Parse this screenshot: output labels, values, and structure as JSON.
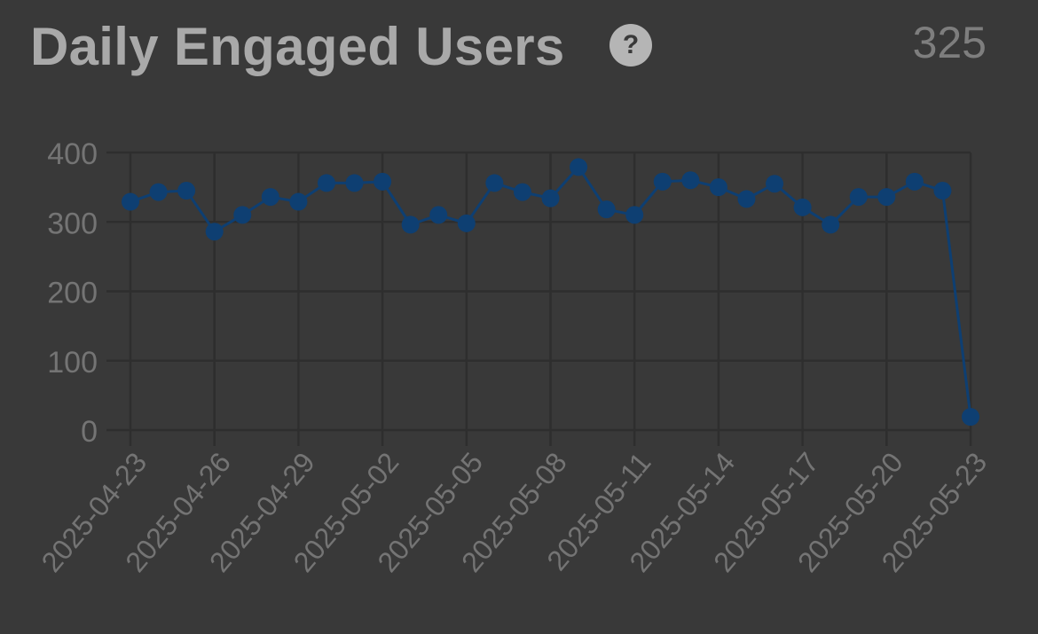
{
  "header": {
    "title": "Daily Engaged Users",
    "help_icon": "question-circle-icon",
    "value": "325"
  },
  "colors": {
    "background": "#393939",
    "series": "#0e3f72",
    "grid": "#2e2e2e",
    "text": "#a9a9a9",
    "tick_text": "#747474"
  },
  "chart_data": {
    "type": "line",
    "title": "",
    "xlabel": "",
    "ylabel": "",
    "ylim": [
      0,
      400
    ],
    "yticks": [
      0,
      100,
      200,
      300,
      400
    ],
    "grid": true,
    "x": [
      "2025-04-23",
      "2025-04-24",
      "2025-04-25",
      "2025-04-26",
      "2025-04-27",
      "2025-04-28",
      "2025-04-29",
      "2025-04-30",
      "2025-05-01",
      "2025-05-02",
      "2025-05-03",
      "2025-05-04",
      "2025-05-05",
      "2025-05-06",
      "2025-05-07",
      "2025-05-08",
      "2025-05-09",
      "2025-05-10",
      "2025-05-11",
      "2025-05-12",
      "2025-05-13",
      "2025-05-14",
      "2025-05-15",
      "2025-05-16",
      "2025-05-17",
      "2025-05-18",
      "2025-05-19",
      "2025-05-20",
      "2025-05-21",
      "2025-05-22",
      "2025-05-23"
    ],
    "xtick_labels": [
      "2025-04-23",
      "2025-04-26",
      "2025-04-29",
      "2025-05-02",
      "2025-05-05",
      "2025-05-08",
      "2025-05-11",
      "2025-05-14",
      "2025-05-17",
      "2025-05-20",
      "2025-05-23"
    ],
    "series": [
      {
        "values": [
          329,
          343,
          345,
          286,
          310,
          336,
          329,
          356,
          356,
          358,
          296,
          310,
          298,
          356,
          343,
          334,
          379,
          318,
          310,
          358,
          360,
          350,
          333,
          355,
          321,
          296,
          336,
          336,
          358,
          345,
          19
        ]
      }
    ]
  }
}
